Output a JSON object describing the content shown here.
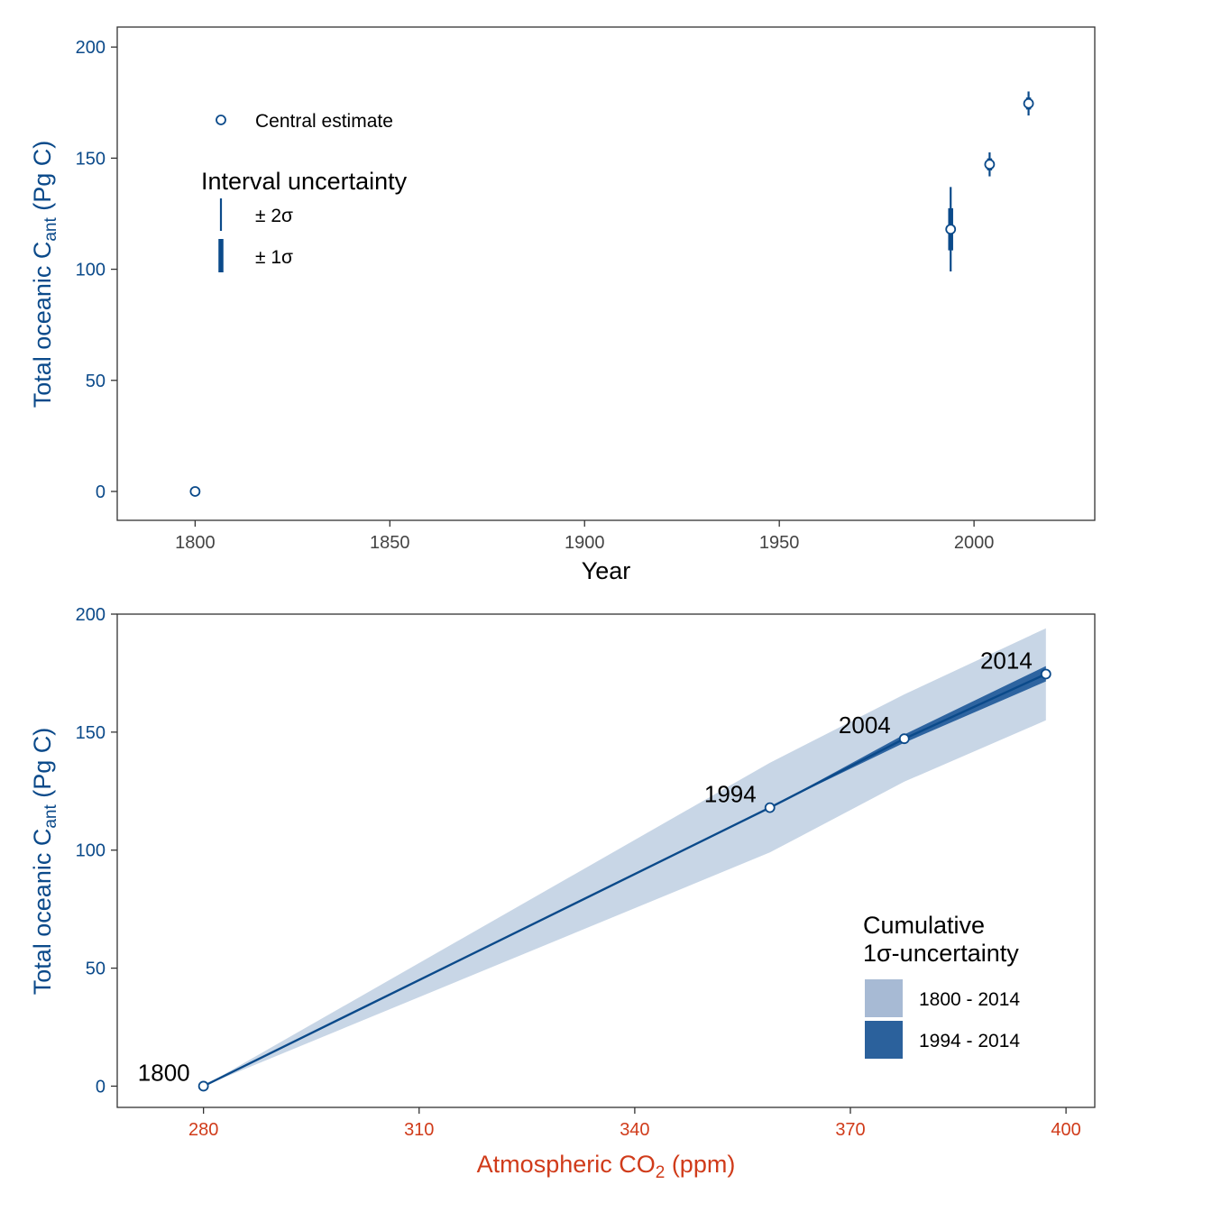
{
  "colors": {
    "primary": "#0b4a8a",
    "x_axis_red": "#d03b1a",
    "band_outer": "#c8d6e6",
    "band_inner": "#2e64a0",
    "legend_outer": "#a7bad4",
    "legend_inner": "#2b619c",
    "frame": "#333333",
    "tick_gray": "#444444"
  },
  "chart_data": [
    {
      "type": "scatter",
      "xlabel": "Year",
      "ylabel": {
        "main": "Total oceanic C",
        "sub": "ant",
        "unit": " (Pg C)"
      },
      "xlim": [
        1780,
        2031
      ],
      "ylim": [
        -13,
        209
      ],
      "x_ticks": [
        1800,
        1850,
        1900,
        1950,
        2000
      ],
      "y_ticks": [
        0,
        50,
        100,
        150,
        200
      ],
      "grid": false,
      "points": [
        {
          "x": 1800,
          "y": 0,
          "sd": 0
        },
        {
          "x": 1994,
          "y": 118,
          "sd": 9.5
        },
        {
          "x": 2004,
          "y": 147.2,
          "sd": 2.7
        },
        {
          "x": 2014,
          "y": 174.6,
          "sd": 2.7
        }
      ],
      "legend": {
        "position": "top-left",
        "point_label": "Central estimate",
        "title": "Interval uncertainty",
        "items": [
          "± 2σ",
          "± 1σ"
        ]
      }
    },
    {
      "type": "line",
      "xlabel": {
        "main": "Atmospheric CO",
        "sub": "2",
        "unit": " (ppm)"
      },
      "ylabel": {
        "main": "Total oceanic C",
        "sub": "ant",
        "unit": " (Pg C)"
      },
      "xlim": [
        268,
        404
      ],
      "ylim": [
        -9,
        200
      ],
      "x_ticks": [
        280,
        310,
        340,
        370,
        400
      ],
      "y_ticks": [
        0,
        50,
        100,
        150,
        200
      ],
      "grid": false,
      "points": [
        {
          "co2": 280,
          "y": 0,
          "label": "1800"
        },
        {
          "co2": 358.8,
          "y": 118,
          "label": "1994"
        },
        {
          "co2": 377.5,
          "y": 147.2,
          "label": "2004"
        },
        {
          "co2": 397.2,
          "y": 174.6,
          "label": "2014"
        }
      ],
      "band_1800_2014": [
        {
          "co2": 280,
          "lo": 0,
          "hi": 0
        },
        {
          "co2": 358.8,
          "lo": 99,
          "hi": 137
        },
        {
          "co2": 377.5,
          "lo": 129,
          "hi": 166
        },
        {
          "co2": 397.2,
          "lo": 155,
          "hi": 194
        }
      ],
      "band_1994_2014": [
        {
          "co2": 358.8,
          "lo": 118,
          "hi": 118
        },
        {
          "co2": 377.5,
          "lo": 145.5,
          "hi": 149
        },
        {
          "co2": 397.2,
          "lo": 171.5,
          "hi": 178
        }
      ],
      "legend": {
        "position": "bottom-right",
        "title_line1": "Cumulative",
        "title_line2": "1σ-uncertainty",
        "items": [
          "1800 - 2014",
          "1994 - 2014"
        ]
      }
    }
  ]
}
